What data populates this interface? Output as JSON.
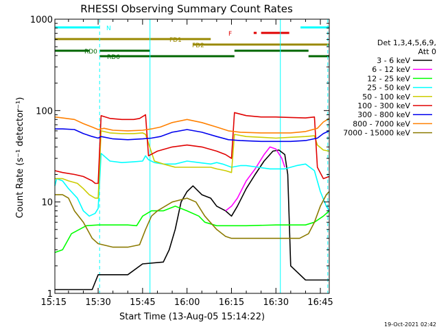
{
  "chart_data": {
    "type": "line",
    "title": "RHESSI Observing Summary Count Rates",
    "xlabel": "Start Time (13-Aug-05 15:14:22)",
    "ylabel": "Count Rate (s⁻¹ detector⁻¹)",
    "yscale": "log",
    "ylim": [
      1,
      1000
    ],
    "xlim_minutes": [
      15.4,
      108
    ],
    "x_ticks": [
      {
        "label": "15:15",
        "min": 15
      },
      {
        "label": "15:30",
        "min": 30
      },
      {
        "label": "15:45",
        "min": 45
      },
      {
        "label": "16:00",
        "min": 60
      },
      {
        "label": "16:15",
        "min": 75
      },
      {
        "label": "16:30",
        "min": 90
      },
      {
        "label": "16:45",
        "min": 105
      }
    ],
    "y_ticks": [
      {
        "label": "1",
        "value": 1
      },
      {
        "label": "10",
        "value": 10
      },
      {
        "label": "100",
        "value": 100
      },
      {
        "label": "1000",
        "value": 1000
      }
    ],
    "legend_header": [
      "Det 1,3,4,5,6,9,",
      "Att 0"
    ],
    "legend": [
      {
        "name": "3 - 6 keV",
        "color": "#000000"
      },
      {
        "name": "6 - 12 keV",
        "color": "#ff00ff"
      },
      {
        "name": "12 - 25 keV",
        "color": "#00ff00"
      },
      {
        "name": "25 - 50 keV",
        "color": "#00ffff"
      },
      {
        "name": "50 - 100 keV",
        "color": "#cccc00"
      },
      {
        "name": "100 - 300 keV",
        "color": "#e00000"
      },
      {
        "name": "300 - 800 keV",
        "color": "#0000ee"
      },
      {
        "name": "800 - 7000 keV",
        "color": "#ff8000"
      },
      {
        "name": "7000 - 15000 keV",
        "color": "#8b7a00"
      }
    ],
    "series": [
      {
        "name": "3 - 6 keV",
        "color": "#000000",
        "points": [
          [
            15.4,
            1.1
          ],
          [
            28,
            1.1
          ],
          [
            30,
            1.6
          ],
          [
            40,
            1.6
          ],
          [
            45,
            2.1
          ],
          [
            52,
            2.2
          ],
          [
            54,
            3
          ],
          [
            56,
            5
          ],
          [
            58,
            10
          ],
          [
            60,
            13
          ],
          [
            62,
            15
          ],
          [
            65,
            12
          ],
          [
            68,
            11
          ],
          [
            70,
            9
          ],
          [
            73,
            8
          ],
          [
            75,
            7
          ],
          [
            77,
            9
          ],
          [
            80,
            14
          ],
          [
            83,
            20
          ],
          [
            86,
            28
          ],
          [
            89,
            36
          ],
          [
            91,
            37
          ],
          [
            93,
            33
          ],
          [
            94,
            20
          ],
          [
            95,
            2
          ],
          [
            100,
            1.4
          ],
          [
            108,
            1.4
          ]
        ]
      },
      {
        "name": "6 - 12 keV",
        "color": "#ff00ff",
        "points": [
          [
            73,
            8
          ],
          [
            75,
            9
          ],
          [
            77,
            11
          ],
          [
            80,
            17
          ],
          [
            83,
            23
          ],
          [
            86,
            33
          ],
          [
            88,
            40
          ],
          [
            90,
            38
          ],
          [
            92,
            30
          ],
          [
            93,
            24
          ]
        ]
      },
      {
        "name": "12 - 25 keV",
        "color": "#00ff00",
        "points": [
          [
            15.4,
            2.8
          ],
          [
            18,
            3
          ],
          [
            21,
            4.5
          ],
          [
            26,
            5.5
          ],
          [
            30,
            5.6
          ],
          [
            40,
            5.6
          ],
          [
            43,
            5.5
          ],
          [
            45,
            7
          ],
          [
            48,
            8
          ],
          [
            52,
            8
          ],
          [
            56,
            9
          ],
          [
            60,
            8
          ],
          [
            64,
            7
          ],
          [
            66,
            6
          ],
          [
            70,
            5.5
          ],
          [
            80,
            5.5
          ],
          [
            90,
            5.6
          ],
          [
            100,
            5.6
          ],
          [
            103,
            6
          ],
          [
            106,
            7
          ],
          [
            108,
            8
          ]
        ]
      },
      {
        "name": "25 - 50 keV",
        "color": "#00ffff",
        "points": [
          [
            15.4,
            15
          ],
          [
            16,
            18
          ],
          [
            18,
            17
          ],
          [
            20,
            14
          ],
          [
            23,
            11
          ],
          [
            25,
            8
          ],
          [
            27,
            7
          ],
          [
            29,
            7.5
          ],
          [
            30,
            8.5
          ],
          [
            31,
            34
          ],
          [
            34,
            28
          ],
          [
            38,
            27
          ],
          [
            42,
            27.5
          ],
          [
            45,
            28
          ],
          [
            46,
            32
          ],
          [
            47,
            29
          ],
          [
            49,
            27
          ],
          [
            52,
            26
          ],
          [
            56,
            26
          ],
          [
            60,
            28
          ],
          [
            64,
            27
          ],
          [
            68,
            26
          ],
          [
            70,
            27
          ],
          [
            72,
            26
          ],
          [
            75,
            24
          ],
          [
            78,
            25
          ],
          [
            80,
            25
          ],
          [
            84,
            24
          ],
          [
            88,
            23
          ],
          [
            93,
            23
          ],
          [
            97,
            25
          ],
          [
            100,
            26
          ],
          [
            103,
            22
          ],
          [
            105,
            13
          ],
          [
            107,
            9
          ],
          [
            108,
            8
          ]
        ]
      },
      {
        "name": "50 - 100 keV",
        "color": "#cccc00",
        "points": [
          [
            15.4,
            18
          ],
          [
            18,
            18
          ],
          [
            20,
            17
          ],
          [
            23,
            16
          ],
          [
            25,
            14
          ],
          [
            27,
            12
          ],
          [
            29,
            11
          ],
          [
            30,
            11
          ],
          [
            31,
            60
          ],
          [
            34,
            57
          ],
          [
            38,
            56
          ],
          [
            42,
            56
          ],
          [
            45,
            57
          ],
          [
            46,
            55
          ],
          [
            49,
            28
          ],
          [
            52,
            26
          ],
          [
            56,
            24
          ],
          [
            60,
            24
          ],
          [
            64,
            24
          ],
          [
            68,
            24
          ],
          [
            70,
            23
          ],
          [
            73,
            22
          ],
          [
            75,
            21
          ],
          [
            76,
            55
          ],
          [
            80,
            52
          ],
          [
            85,
            51
          ],
          [
            90,
            50
          ],
          [
            95,
            51
          ],
          [
            100,
            52
          ],
          [
            103,
            53
          ],
          [
            104,
            42
          ],
          [
            106,
            37
          ],
          [
            108,
            36
          ]
        ]
      },
      {
        "name": "100 - 300 keV",
        "color": "#e00000",
        "points": [
          [
            15.4,
            22
          ],
          [
            18,
            21
          ],
          [
            22,
            20
          ],
          [
            25,
            19
          ],
          [
            28,
            17
          ],
          [
            29,
            16
          ],
          [
            30,
            16
          ],
          [
            31,
            88
          ],
          [
            34,
            82
          ],
          [
            38,
            80
          ],
          [
            42,
            80
          ],
          [
            44,
            82
          ],
          [
            46,
            90
          ],
          [
            47,
            32
          ],
          [
            50,
            36
          ],
          [
            55,
            40
          ],
          [
            60,
            42
          ],
          [
            65,
            40
          ],
          [
            70,
            36
          ],
          [
            73,
            33
          ],
          [
            75,
            30
          ],
          [
            76,
            95
          ],
          [
            80,
            88
          ],
          [
            85,
            85
          ],
          [
            90,
            85
          ],
          [
            95,
            84
          ],
          [
            100,
            83
          ],
          [
            103,
            85
          ],
          [
            104,
            24
          ],
          [
            106,
            18
          ],
          [
            108,
            19
          ]
        ]
      },
      {
        "name": "300 - 800 keV",
        "color": "#0000ee",
        "points": [
          [
            15.4,
            63
          ],
          [
            18,
            63
          ],
          [
            22,
            62
          ],
          [
            25,
            56
          ],
          [
            28,
            52
          ],
          [
            30,
            50
          ],
          [
            31,
            52
          ],
          [
            35,
            49
          ],
          [
            40,
            48
          ],
          [
            45,
            49
          ],
          [
            48,
            50
          ],
          [
            51,
            52
          ],
          [
            55,
            58
          ],
          [
            60,
            62
          ],
          [
            65,
            58
          ],
          [
            70,
            52
          ],
          [
            74,
            48
          ],
          [
            78,
            47
          ],
          [
            85,
            46
          ],
          [
            90,
            46
          ],
          [
            95,
            46
          ],
          [
            100,
            47
          ],
          [
            104,
            50
          ],
          [
            106,
            56
          ],
          [
            108,
            60
          ]
        ]
      },
      {
        "name": "800 - 7000 keV",
        "color": "#ff8000",
        "points": [
          [
            15.4,
            85
          ],
          [
            18,
            83
          ],
          [
            22,
            80
          ],
          [
            25,
            72
          ],
          [
            28,
            66
          ],
          [
            30,
            62
          ],
          [
            32,
            64
          ],
          [
            35,
            61
          ],
          [
            40,
            60
          ],
          [
            45,
            61
          ],
          [
            48,
            63
          ],
          [
            51,
            66
          ],
          [
            55,
            74
          ],
          [
            60,
            80
          ],
          [
            65,
            74
          ],
          [
            70,
            66
          ],
          [
            74,
            60
          ],
          [
            78,
            58
          ],
          [
            85,
            57
          ],
          [
            90,
            57
          ],
          [
            95,
            57
          ],
          [
            100,
            59
          ],
          [
            104,
            64
          ],
          [
            106,
            75
          ],
          [
            108,
            82
          ]
        ]
      },
      {
        "name": "7000 - 15000 keV",
        "color": "#8b7a00",
        "points": [
          [
            15.4,
            12
          ],
          [
            18,
            12
          ],
          [
            20,
            11
          ],
          [
            22,
            8
          ],
          [
            25,
            6
          ],
          [
            28,
            4
          ],
          [
            30,
            3.5
          ],
          [
            35,
            3.2
          ],
          [
            40,
            3.2
          ],
          [
            44,
            3.4
          ],
          [
            46,
            5
          ],
          [
            48,
            7
          ],
          [
            50,
            8
          ],
          [
            55,
            10
          ],
          [
            60,
            11
          ],
          [
            63,
            10
          ],
          [
            66,
            7
          ],
          [
            70,
            5
          ],
          [
            73,
            4.2
          ],
          [
            75,
            4
          ],
          [
            80,
            4
          ],
          [
            85,
            4
          ],
          [
            90,
            4
          ],
          [
            95,
            4
          ],
          [
            98,
            4
          ],
          [
            101,
            4.5
          ],
          [
            103,
            6
          ],
          [
            105,
            9
          ],
          [
            107,
            12
          ],
          [
            108,
            13
          ]
        ]
      }
    ],
    "flag_bars": [
      {
        "label": "N",
        "color": "#00ffff",
        "segments": [
          [
            15.4,
            30.5
          ],
          [
            98.3,
            108
          ]
        ]
      },
      {
        "label": "F",
        "color": "#e00000",
        "segments": [
          [
            82.5,
            83.5
          ],
          [
            85,
            94.5
          ]
        ]
      },
      {
        "label": "FD1",
        "color": "#998800",
        "segments": [
          [
            15.4,
            68
          ]
        ]
      },
      {
        "label": "FD2",
        "color": "#998800",
        "segments": [
          [
            62,
            108
          ]
        ]
      },
      {
        "label": "RD0",
        "color": "#006600",
        "segments": [
          [
            15.4,
            27
          ],
          [
            30.5,
            47.5
          ],
          [
            76,
            101
          ]
        ]
      },
      {
        "label": "RD6",
        "color": "#006600",
        "segments": [
          [
            30.5,
            47.5
          ],
          [
            47.5,
            76
          ],
          [
            101,
            108
          ]
        ]
      }
    ],
    "vertical_markers": [
      {
        "min": 30.5,
        "color": "#00ffff",
        "style": "dashed"
      },
      {
        "min": 47.5,
        "color": "#00ffff",
        "style": "solid"
      },
      {
        "min": 91.5,
        "color": "#00ffff",
        "style": "solid"
      },
      {
        "min": 107.5,
        "color": "#00ffff",
        "style": "dashed"
      }
    ],
    "grid": false
  },
  "timestamp": "19-Oct-2021 02:42"
}
